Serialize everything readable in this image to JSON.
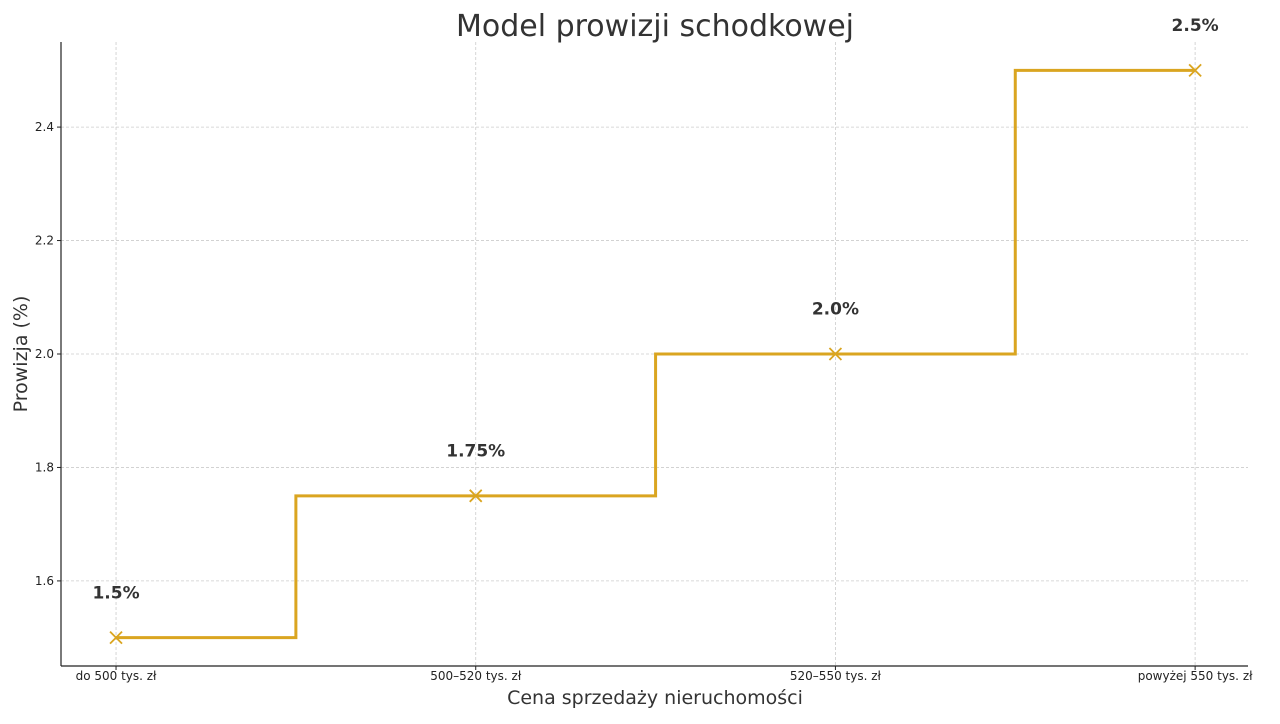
{
  "chart_data": {
    "type": "line",
    "step": "mid",
    "title": "Model prowizji schodkowej",
    "xlabel": "Cena sprzedaży nieruchomości",
    "ylabel": "Prowizja (%)",
    "categories": [
      "do 500 tys. zł",
      "500–520 tys. zł",
      "520–550 tys. zł",
      "powyżej 550 tys. zł"
    ],
    "values": [
      1.5,
      1.75,
      2.0,
      2.5
    ],
    "data_labels": [
      "1.5%",
      "1.75%",
      "2.0%",
      "2.5%"
    ],
    "marker": "x",
    "ylim": [
      1.45,
      2.55
    ],
    "yticks": [
      1.6,
      1.8,
      2.0,
      2.2,
      2.4
    ],
    "ytick_labels": [
      "1.6",
      "1.8",
      "2.0",
      "2.2",
      "2.4"
    ],
    "grid": true,
    "line_color": "#DAA520"
  }
}
